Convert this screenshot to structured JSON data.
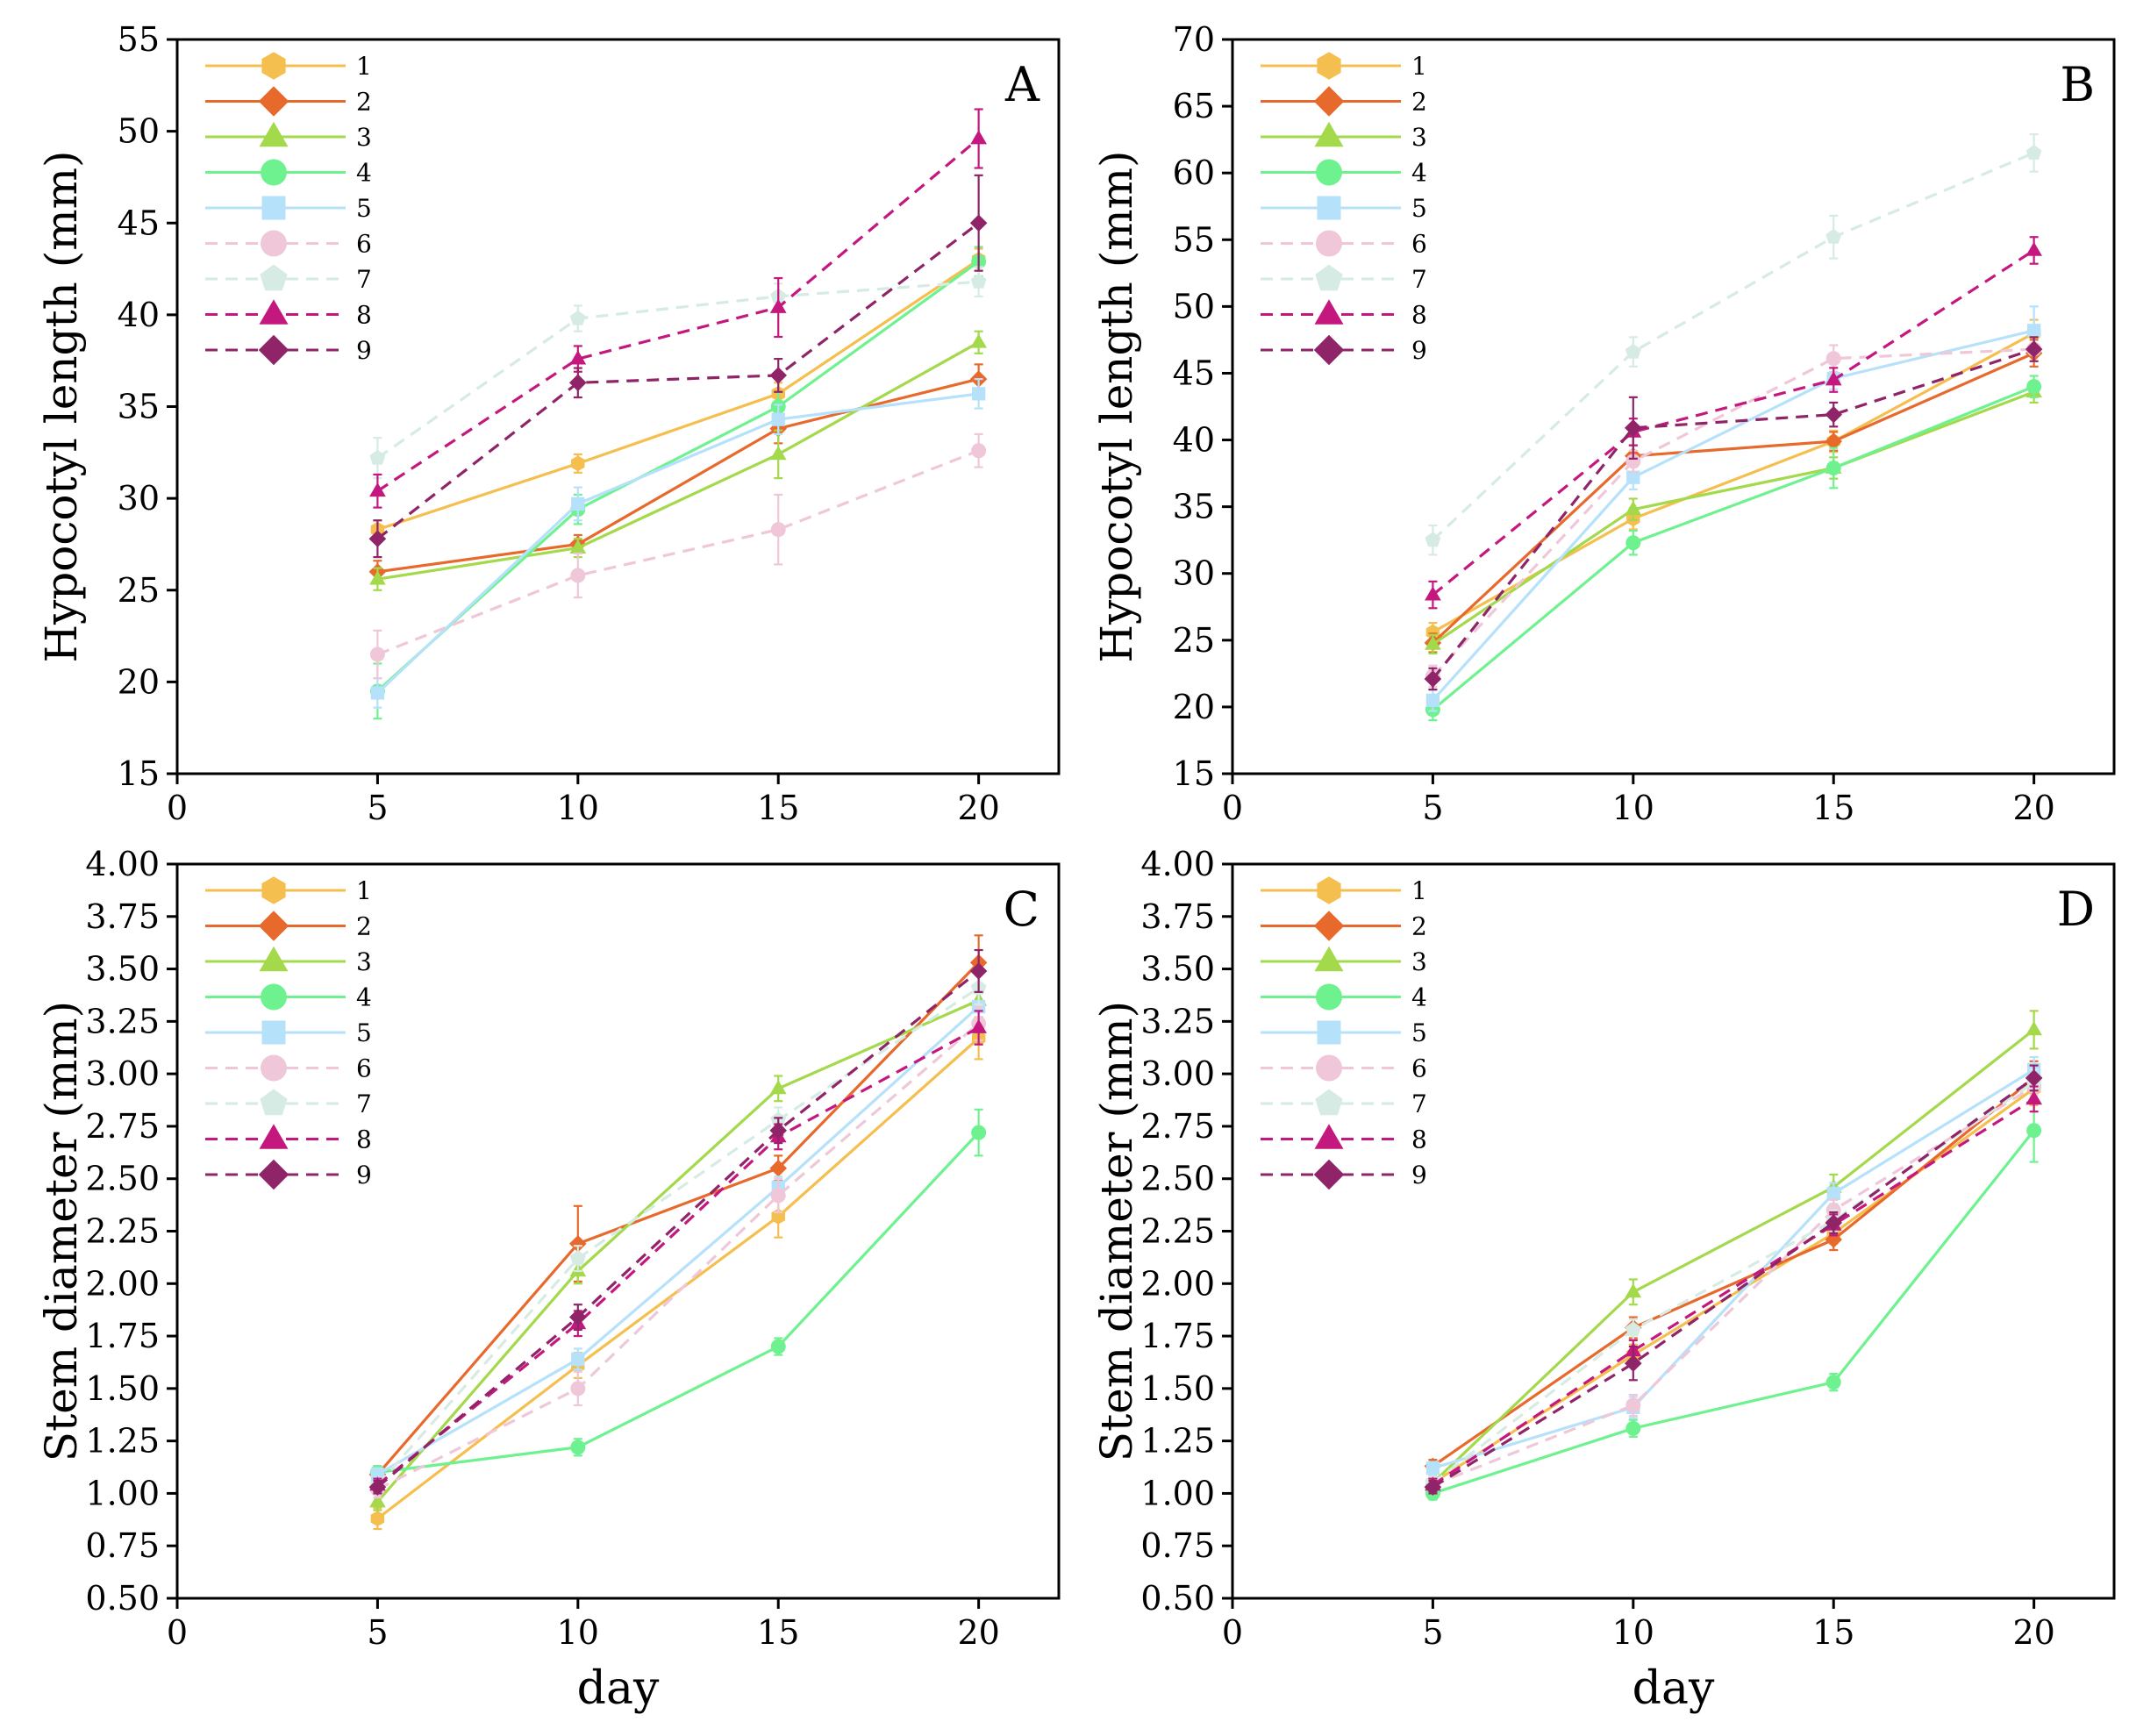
{
  "series_styles": [
    {
      "name": "1",
      "color": "#f5bf4f",
      "marker": "hexagon",
      "dash": false
    },
    {
      "name": "2",
      "color": "#e8692c",
      "marker": "diamond",
      "dash": false
    },
    {
      "name": "3",
      "color": "#a3d94a",
      "marker": "triangle",
      "dash": false
    },
    {
      "name": "4",
      "color": "#6ef28f",
      "marker": "circle",
      "dash": false
    },
    {
      "name": "5",
      "color": "#b5e1fb",
      "marker": "square",
      "dash": false
    },
    {
      "name": "6",
      "color": "#efc7d8",
      "marker": "circle",
      "dash": true
    },
    {
      "name": "7",
      "color": "#d5ebe3",
      "marker": "pentagon",
      "dash": true
    },
    {
      "name": "8",
      "color": "#c4187f",
      "marker": "triangle",
      "dash": true
    },
    {
      "name": "9",
      "color": "#8f2468",
      "marker": "diamond",
      "dash": true
    }
  ],
  "chart_data": [
    {
      "type": "line",
      "panel_label": "A",
      "xlabel": "",
      "ylabel": "Hypocotyl length (mm)",
      "x": [
        5,
        10,
        15,
        20
      ],
      "xlim": [
        0,
        22
      ],
      "ylim": [
        15,
        55
      ],
      "xticks": [
        0,
        5,
        10,
        15,
        20
      ],
      "yticks": [
        15,
        20,
        25,
        30,
        35,
        40,
        45,
        50,
        55
      ],
      "ytick_labels": [
        "15",
        "20",
        "25",
        "30",
        "35",
        "40",
        "45",
        "50",
        "55"
      ],
      "legend_position": "top-left",
      "series": [
        {
          "name": "1",
          "values": [
            28.3,
            31.9,
            35.7,
            43.0
          ],
          "errors": [
            0.5,
            0.5,
            0.6,
            0.6
          ]
        },
        {
          "name": "2",
          "values": [
            26.0,
            27.5,
            33.8,
            36.5
          ],
          "errors": [
            0.6,
            0.5,
            0.8,
            0.8
          ]
        },
        {
          "name": "3",
          "values": [
            25.6,
            27.3,
            32.4,
            38.5
          ],
          "errors": [
            0.6,
            0.5,
            1.3,
            0.6
          ]
        },
        {
          "name": "4",
          "values": [
            19.5,
            29.4,
            35.0,
            42.9
          ],
          "errors": [
            1.5,
            0.8,
            0.8,
            0.8
          ]
        },
        {
          "name": "5",
          "values": [
            19.4,
            29.7,
            34.3,
            35.7
          ],
          "errors": [
            0.8,
            0.9,
            0.8,
            0.8
          ]
        },
        {
          "name": "6",
          "values": [
            21.5,
            25.8,
            28.3,
            32.6
          ],
          "errors": [
            1.3,
            1.2,
            1.9,
            0.9
          ]
        },
        {
          "name": "7",
          "values": [
            32.2,
            39.8,
            41.0,
            41.8
          ],
          "errors": [
            1.1,
            0.7,
            0.7,
            0.8
          ]
        },
        {
          "name": "8",
          "values": [
            30.4,
            37.6,
            40.4,
            49.6
          ],
          "errors": [
            0.9,
            0.7,
            1.6,
            1.6
          ]
        },
        {
          "name": "9",
          "values": [
            27.8,
            36.3,
            36.7,
            45.0
          ],
          "errors": [
            1.0,
            0.8,
            0.9,
            2.6
          ]
        }
      ]
    },
    {
      "type": "line",
      "panel_label": "B",
      "xlabel": "",
      "ylabel": "Hypocotyl length (mm)",
      "x": [
        5,
        10,
        15,
        20
      ],
      "xlim": [
        0,
        22
      ],
      "ylim": [
        15,
        70
      ],
      "xticks": [
        0,
        5,
        10,
        15,
        20
      ],
      "yticks": [
        15,
        20,
        25,
        30,
        35,
        40,
        45,
        50,
        55,
        60,
        65,
        70
      ],
      "ytick_labels": [
        "15",
        "20",
        "25",
        "30",
        "35",
        "40",
        "45",
        "50",
        "55",
        "60",
        "65",
        "70"
      ],
      "legend_position": "top-left",
      "series": [
        {
          "name": "1",
          "values": [
            25.6,
            34.1,
            39.9,
            48.0
          ],
          "errors": [
            0.7,
            0.8,
            0.8,
            1.0
          ]
        },
        {
          "name": "2",
          "values": [
            24.8,
            38.8,
            39.9,
            46.5
          ],
          "errors": [
            0.7,
            0.8,
            0.7,
            1.0
          ]
        },
        {
          "name": "3",
          "values": [
            24.7,
            34.8,
            37.9,
            43.6
          ],
          "errors": [
            0.7,
            0.8,
            0.8,
            0.8
          ]
        },
        {
          "name": "4",
          "values": [
            19.8,
            32.3,
            37.9,
            44.0
          ],
          "errors": [
            0.8,
            0.9,
            1.5,
            0.8
          ]
        },
        {
          "name": "5",
          "values": [
            20.5,
            37.2,
            44.6,
            48.2
          ],
          "errors": [
            0.8,
            0.9,
            0.8,
            1.8
          ]
        },
        {
          "name": "6",
          "values": [
            22.3,
            38.4,
            46.1,
            46.8
          ],
          "errors": [
            0.8,
            0.8,
            1.0,
            0.9
          ]
        },
        {
          "name": "7",
          "values": [
            32.5,
            46.6,
            55.2,
            61.5
          ],
          "errors": [
            1.1,
            1.1,
            1.6,
            1.4
          ]
        },
        {
          "name": "8",
          "values": [
            28.4,
            40.6,
            44.5,
            54.2
          ],
          "errors": [
            1.0,
            1.0,
            0.9,
            1.0
          ]
        },
        {
          "name": "9",
          "values": [
            22.1,
            40.9,
            41.9,
            46.8
          ],
          "errors": [
            0.8,
            2.3,
            0.9,
            0.9
          ]
        }
      ]
    },
    {
      "type": "line",
      "panel_label": "C",
      "xlabel": "day",
      "ylabel": "Stem diameter (mm)",
      "x": [
        5,
        10,
        15,
        20
      ],
      "xlim": [
        0,
        22
      ],
      "ylim": [
        0.5,
        4.0
      ],
      "xticks": [
        0,
        5,
        10,
        15,
        20
      ],
      "yticks": [
        0.5,
        0.75,
        1.0,
        1.25,
        1.5,
        1.75,
        2.0,
        2.25,
        2.5,
        2.75,
        3.0,
        3.25,
        3.5,
        3.75,
        4.0
      ],
      "ytick_labels": [
        "0.50",
        "0.75",
        "1.00",
        "1.25",
        "1.50",
        "1.75",
        "2.00",
        "2.25",
        "2.50",
        "2.75",
        "3.00",
        "3.25",
        "3.50",
        "3.75",
        "4.00"
      ],
      "legend_position": "top-left",
      "series": [
        {
          "name": "1",
          "values": [
            0.88,
            1.61,
            2.32,
            3.17
          ],
          "errors": [
            0.05,
            0.06,
            0.1,
            0.1
          ]
        },
        {
          "name": "2",
          "values": [
            1.09,
            2.19,
            2.55,
            3.53
          ],
          "errors": [
            0.04,
            0.18,
            0.06,
            0.13
          ]
        },
        {
          "name": "3",
          "values": [
            0.96,
            2.06,
            2.93,
            3.35
          ],
          "errors": [
            0.04,
            0.06,
            0.06,
            0.08
          ]
        },
        {
          "name": "4",
          "values": [
            1.1,
            1.22,
            1.7,
            2.72
          ],
          "errors": [
            0.03,
            0.04,
            0.04,
            0.11
          ]
        },
        {
          "name": "5",
          "values": [
            1.09,
            1.64,
            2.46,
            3.32
          ],
          "errors": [
            0.03,
            0.05,
            0.05,
            0.07
          ]
        },
        {
          "name": "6",
          "values": [
            1.02,
            1.5,
            2.42,
            3.24
          ],
          "errors": [
            0.04,
            0.08,
            0.08,
            0.08
          ]
        },
        {
          "name": "7",
          "values": [
            1.04,
            2.12,
            2.78,
            3.41
          ],
          "errors": [
            0.03,
            0.06,
            0.06,
            0.08
          ]
        },
        {
          "name": "8",
          "values": [
            1.04,
            1.81,
            2.7,
            3.22
          ],
          "errors": [
            0.03,
            0.06,
            0.06,
            0.08
          ]
        },
        {
          "name": "9",
          "values": [
            1.03,
            1.84,
            2.73,
            3.49
          ],
          "errors": [
            0.03,
            0.06,
            0.06,
            0.1
          ]
        }
      ]
    },
    {
      "type": "line",
      "panel_label": "D",
      "xlabel": "day",
      "ylabel": "Stem diameter (mm)",
      "x": [
        5,
        10,
        15,
        20
      ],
      "xlim": [
        0,
        22
      ],
      "ylim": [
        0.5,
        4.0
      ],
      "xticks": [
        0,
        5,
        10,
        15,
        20
      ],
      "yticks": [
        0.5,
        0.75,
        1.0,
        1.25,
        1.5,
        1.75,
        2.0,
        2.25,
        2.5,
        2.75,
        3.0,
        3.25,
        3.5,
        3.75,
        4.0
      ],
      "ytick_labels": [
        "0.50",
        "0.75",
        "1.00",
        "1.25",
        "1.50",
        "1.75",
        "2.00",
        "2.25",
        "2.50",
        "2.75",
        "3.00",
        "3.25",
        "3.50",
        "3.75",
        "4.00"
      ],
      "legend_position": "top-left",
      "series": [
        {
          "name": "1",
          "values": [
            1.05,
            1.66,
            2.24,
            2.93
          ],
          "errors": [
            0.03,
            0.05,
            0.05,
            0.08
          ]
        },
        {
          "name": "2",
          "values": [
            1.13,
            1.79,
            2.21,
            2.98
          ],
          "errors": [
            0.03,
            0.05,
            0.05,
            0.08
          ]
        },
        {
          "name": "3",
          "values": [
            1.05,
            1.96,
            2.46,
            3.21
          ],
          "errors": [
            0.03,
            0.06,
            0.06,
            0.09
          ]
        },
        {
          "name": "4",
          "values": [
            1.0,
            1.31,
            1.53,
            2.73
          ],
          "errors": [
            0.03,
            0.04,
            0.04,
            0.15
          ]
        },
        {
          "name": "5",
          "values": [
            1.12,
            1.41,
            2.43,
            3.02
          ],
          "errors": [
            0.03,
            0.05,
            0.05,
            0.06
          ]
        },
        {
          "name": "6",
          "values": [
            1.04,
            1.42,
            2.35,
            2.94
          ],
          "errors": [
            0.03,
            0.05,
            0.05,
            0.06
          ]
        },
        {
          "name": "7",
          "values": [
            1.05,
            1.78,
            2.3,
            2.96
          ],
          "errors": [
            0.03,
            0.05,
            0.05,
            0.06
          ]
        },
        {
          "name": "8",
          "values": [
            1.04,
            1.68,
            2.28,
            2.88
          ],
          "errors": [
            0.03,
            0.05,
            0.05,
            0.06
          ]
        },
        {
          "name": "9",
          "values": [
            1.03,
            1.62,
            2.29,
            2.98
          ],
          "errors": [
            0.03,
            0.08,
            0.05,
            0.06
          ]
        }
      ]
    }
  ]
}
